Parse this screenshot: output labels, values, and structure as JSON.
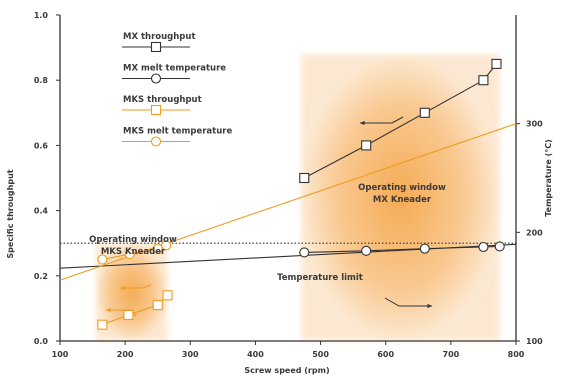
{
  "chart_data": {
    "type": "line",
    "xlabel": "Screw speed (rpm)",
    "ylabel": "Specific throughput",
    "y2label": "Temperature (°C)",
    "xlim": [
      100,
      800
    ],
    "ylim": [
      0,
      1.0
    ],
    "y2lim": [
      100,
      400
    ],
    "x_ticks": [
      100,
      200,
      300,
      400,
      500,
      600,
      700,
      800
    ],
    "y_ticks": [
      0.0,
      0.2,
      0.4,
      0.6,
      0.8,
      1.0
    ],
    "y_tick_labels": [
      "0.0",
      "0.2",
      "0.4",
      "0.6",
      "0.8",
      "1.0"
    ],
    "y2_ticks": [
      100,
      200,
      300
    ],
    "series": [
      {
        "name": "MX throughput",
        "axis": "left",
        "marker": "square",
        "color": "#333333",
        "x": [
          475,
          570,
          660,
          750,
          770
        ],
        "y": [
          0.5,
          0.6,
          0.7,
          0.8,
          0.85
        ]
      },
      {
        "name": "MX melt temperature",
        "axis": "right",
        "marker": "circle",
        "color": "#333333",
        "x": [
          475,
          570,
          660,
          750,
          775
        ],
        "y": [
          181.5,
          183,
          185,
          186.5,
          187
        ]
      },
      {
        "name": "MKS throughput",
        "axis": "left",
        "marker": "square",
        "color": "#f09a1e",
        "x": [
          165,
          205,
          250,
          265
        ],
        "y": [
          0.05,
          0.08,
          0.11,
          0.14
        ]
      },
      {
        "name": "MKS melt temperature",
        "axis": "right",
        "marker": "circle",
        "color": "#f09a1e",
        "x": [
          165,
          207,
          250,
          263
        ],
        "y": [
          175,
          180,
          185,
          188
        ]
      }
    ],
    "reference_lines": [
      {
        "name": "Temperature limit",
        "axis": "right",
        "style": "dotted",
        "color": "#333333",
        "x": [
          100,
          800
        ],
        "y": [
          190,
          190
        ]
      },
      {
        "name": "MX melt temperature trend",
        "axis": "right",
        "style": "solid",
        "color": "#333333",
        "x": [
          100,
          800
        ],
        "y": [
          167,
          189
        ]
      },
      {
        "name": "MKS melt temperature trend",
        "axis": "right",
        "style": "solid",
        "color": "#f09a1e",
        "x": [
          100,
          800
        ],
        "y": [
          156,
          300
        ]
      }
    ],
    "regions": [
      {
        "label_lines": [
          "Operating window",
          "MKS Kneader"
        ],
        "x": [
          155,
          265
        ],
        "y": [
          0.0,
          0.3
        ],
        "color": "#f5a64a"
      },
      {
        "label_lines": [
          "Operating window",
          "MX Kneader"
        ],
        "x": [
          470,
          775
        ],
        "y": [
          0.0,
          0.88
        ],
        "color": "#f5a64a"
      }
    ],
    "annotations": [
      {
        "text": "Temperature limit"
      }
    ],
    "legend": "top-left"
  }
}
